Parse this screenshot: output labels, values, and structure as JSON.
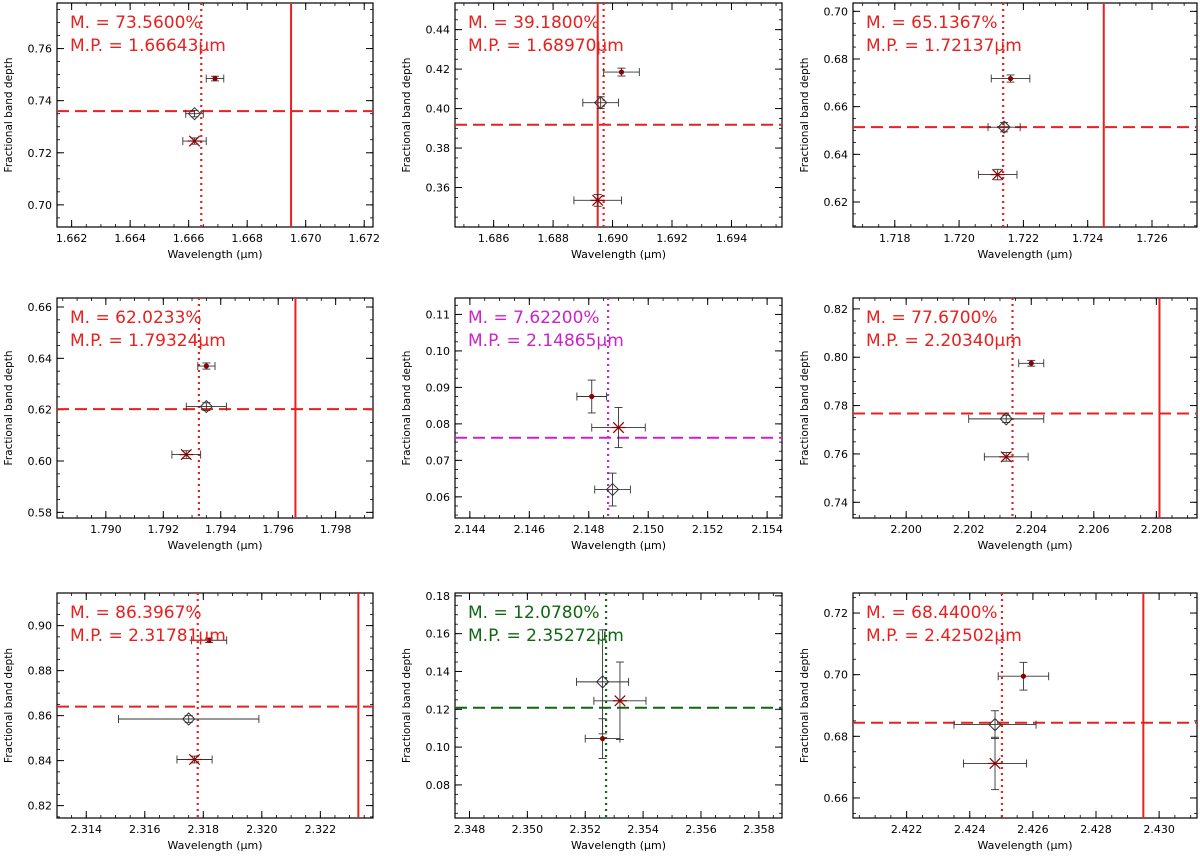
{
  "colors": {
    "red": "#e8201e",
    "magenta": "#cc22cc",
    "green": "#116611",
    "axis": "#000000",
    "errorbar": "#333333",
    "marker": "#8b0000"
  },
  "chart_data": [
    {
      "type": "scatter",
      "xlabel": "Wavelength (μm)",
      "ylabel": "Fractional band depth",
      "color": "red",
      "annotation_m": "M. = 73.5600%",
      "annotation_mp": "M.P. = 1.66643μm",
      "xlim": [
        1.6615,
        1.6723
      ],
      "ylim": [
        0.6915,
        0.7775
      ],
      "xticks": [
        1.662,
        1.664,
        1.666,
        1.668,
        1.67,
        1.672
      ],
      "xtick_labels": [
        "1.662",
        "1.664",
        "1.666",
        "1.668",
        "1.670",
        "1.672"
      ],
      "yticks": [
        0.7,
        0.72,
        0.74,
        0.76
      ],
      "ytick_labels": [
        "0.70",
        "0.72",
        "0.74",
        "0.76"
      ],
      "hline": 0.736,
      "vline_dotted": 1.66643,
      "vline_solid": 1.6695,
      "points": [
        {
          "marker": "dot",
          "x": 1.6669,
          "y": 0.7485,
          "xerr": 0.0003,
          "yerr": 0.0009
        },
        {
          "marker": "diamond",
          "x": 1.6662,
          "y": 0.735,
          "xerr": 0.0003,
          "yerr": 0.0012
        },
        {
          "marker": "asterisk",
          "x": 1.6662,
          "y": 0.7245,
          "xerr": 0.0004,
          "yerr": 0.0012
        }
      ]
    },
    {
      "type": "scatter",
      "xlabel": "Wavelength (μm)",
      "ylabel": "Fractional band depth",
      "color": "red",
      "annotation_m": "M. = 39.1800%",
      "annotation_mp": "M.P. = 1.68970μm",
      "xlim": [
        1.6847,
        1.6957
      ],
      "ylim": [
        0.34,
        0.4535
      ],
      "xticks": [
        1.686,
        1.688,
        1.69,
        1.692,
        1.694
      ],
      "xtick_labels": [
        "1.686",
        "1.688",
        "1.690",
        "1.692",
        "1.694"
      ],
      "yticks": [
        0.36,
        0.38,
        0.4,
        0.42,
        0.44
      ],
      "ytick_labels": [
        "0.36",
        "0.38",
        "0.40",
        "0.42",
        "0.44"
      ],
      "hline": 0.3918,
      "vline_dotted": 1.6897,
      "vline_solid": 1.6895,
      "points": [
        {
          "marker": "dot",
          "x": 1.6903,
          "y": 0.4185,
          "xerr": 0.0006,
          "yerr": 0.002
        },
        {
          "marker": "diamond",
          "x": 1.6896,
          "y": 0.403,
          "xerr": 0.0006,
          "yerr": 0.003
        },
        {
          "marker": "asterisk",
          "x": 1.6895,
          "y": 0.3535,
          "xerr": 0.0008,
          "yerr": 0.003
        }
      ]
    },
    {
      "type": "scatter",
      "xlabel": "Wavelength (μm)",
      "ylabel": "Fractional band depth",
      "color": "red",
      "annotation_m": "M. = 65.1367%",
      "annotation_mp": "M.P. = 1.72137μm",
      "xlim": [
        1.7167,
        1.7274
      ],
      "ylim": [
        0.6095,
        0.7035
      ],
      "xticks": [
        1.718,
        1.72,
        1.722,
        1.724,
        1.726
      ],
      "xtick_labels": [
        "1.718",
        "1.720",
        "1.722",
        "1.724",
        "1.726"
      ],
      "yticks": [
        0.62,
        0.64,
        0.66,
        0.68,
        0.7
      ],
      "ytick_labels": [
        "0.62",
        "0.64",
        "0.66",
        "0.68",
        "0.70"
      ],
      "hline": 0.6514,
      "vline_dotted": 1.72137,
      "vline_solid": 1.7245,
      "points": [
        {
          "marker": "dot",
          "x": 1.7216,
          "y": 0.6718,
          "xerr": 0.0006,
          "yerr": 0.0015
        },
        {
          "marker": "diamond",
          "x": 1.7214,
          "y": 0.6514,
          "xerr": 0.0005,
          "yerr": 0.002
        },
        {
          "marker": "asterisk",
          "x": 1.7212,
          "y": 0.6315,
          "xerr": 0.0006,
          "yerr": 0.0022
        }
      ]
    },
    {
      "type": "scatter",
      "xlabel": "Wavelength (μm)",
      "ylabel": "Fractional band depth",
      "color": "red",
      "annotation_m": "M. = 62.0233%",
      "annotation_mp": "M.P. = 1.79324μm",
      "xlim": [
        1.7883,
        1.7993
      ],
      "ylim": [
        0.5778,
        0.6635
      ],
      "xticks": [
        1.79,
        1.792,
        1.794,
        1.796,
        1.798
      ],
      "xtick_labels": [
        "1.790",
        "1.792",
        "1.794",
        "1.796",
        "1.798"
      ],
      "yticks": [
        0.58,
        0.6,
        0.62,
        0.64,
        0.66
      ],
      "ytick_labels": [
        "0.58",
        "0.60",
        "0.62",
        "0.64",
        "0.66"
      ],
      "hline": 0.6202,
      "vline_dotted": 1.79324,
      "vline_solid": 1.7966,
      "points": [
        {
          "marker": "dot",
          "x": 1.7935,
          "y": 0.637,
          "xerr": 0.0003,
          "yerr": 0.0012
        },
        {
          "marker": "diamond",
          "x": 1.7935,
          "y": 0.6212,
          "xerr": 0.0007,
          "yerr": 0.0015
        },
        {
          "marker": "asterisk",
          "x": 1.7928,
          "y": 0.6025,
          "xerr": 0.0005,
          "yerr": 0.0015
        }
      ]
    },
    {
      "type": "scatter",
      "xlabel": "Wavelength (μm)",
      "ylabel": "Fractional band depth",
      "color": "magenta",
      "annotation_m": "M. = 7.62200%",
      "annotation_mp": "M.P. = 2.14865μm",
      "xlim": [
        2.1435,
        2.1545
      ],
      "ylim": [
        0.0542,
        0.1145
      ],
      "xticks": [
        2.144,
        2.146,
        2.148,
        2.15,
        2.152,
        2.154
      ],
      "xtick_labels": [
        "2.144",
        "2.146",
        "2.148",
        "2.150",
        "2.152",
        "2.154"
      ],
      "yticks": [
        0.06,
        0.07,
        0.08,
        0.09,
        0.1,
        0.11
      ],
      "ytick_labels": [
        "0.06",
        "0.07",
        "0.08",
        "0.09",
        "0.10",
        "0.11"
      ],
      "hline": 0.0762,
      "vline_dotted": 2.14865,
      "vline_solid": null,
      "points": [
        {
          "marker": "dot",
          "x": 2.1481,
          "y": 0.0875,
          "xerr": 0.0005,
          "yerr": 0.0045
        },
        {
          "marker": "asterisk",
          "x": 2.149,
          "y": 0.079,
          "xerr": 0.0009,
          "yerr": 0.0055
        },
        {
          "marker": "diamond",
          "x": 2.1488,
          "y": 0.062,
          "xerr": 0.0006,
          "yerr": 0.0045
        }
      ]
    },
    {
      "type": "scatter",
      "xlabel": "Wavelength (μm)",
      "ylabel": "Fractional band depth",
      "color": "red",
      "annotation_m": "M. = 77.6700%",
      "annotation_mp": "M.P. = 2.20340μm",
      "xlim": [
        2.1983,
        2.2093
      ],
      "ylim": [
        0.7335,
        0.8245
      ],
      "xticks": [
        2.2,
        2.202,
        2.204,
        2.206,
        2.208
      ],
      "xtick_labels": [
        "2.200",
        "2.202",
        "2.204",
        "2.206",
        "2.208"
      ],
      "yticks": [
        0.74,
        0.76,
        0.78,
        0.8,
        0.82
      ],
      "ytick_labels": [
        "0.74",
        "0.76",
        "0.78",
        "0.80",
        "0.82"
      ],
      "hline": 0.7767,
      "vline_dotted": 2.2034,
      "vline_solid": 2.2081,
      "points": [
        {
          "marker": "dot",
          "x": 2.204,
          "y": 0.7975,
          "xerr": 0.0004,
          "yerr": 0.0012
        },
        {
          "marker": "diamond",
          "x": 2.2032,
          "y": 0.7745,
          "xerr": 0.0012,
          "yerr": 0.0015
        },
        {
          "marker": "asterisk",
          "x": 2.2032,
          "y": 0.7588,
          "xerr": 0.0007,
          "yerr": 0.0018
        }
      ]
    },
    {
      "type": "scatter",
      "xlabel": "Wavelength (μm)",
      "ylabel": "Fractional band depth",
      "color": "red",
      "annotation_m": "M. = 86.3967%",
      "annotation_mp": "M.P. = 2.31781μm",
      "xlim": [
        2.313,
        2.3238
      ],
      "ylim": [
        0.8145,
        0.9145
      ],
      "xticks": [
        2.314,
        2.316,
        2.318,
        2.32,
        2.322
      ],
      "xtick_labels": [
        "2.314",
        "2.316",
        "2.318",
        "2.320",
        "2.322"
      ],
      "yticks": [
        0.82,
        0.84,
        0.86,
        0.88,
        0.9
      ],
      "ytick_labels": [
        "0.82",
        "0.84",
        "0.86",
        "0.88",
        "0.90"
      ],
      "hline": 0.864,
      "vline_dotted": 2.31781,
      "vline_solid": 2.3233,
      "points": [
        {
          "marker": "dot",
          "x": 2.3182,
          "y": 0.8935,
          "xerr": 0.0006,
          "yerr": 0.001
        },
        {
          "marker": "diamond",
          "x": 2.3175,
          "y": 0.8585,
          "xerr": 0.0024,
          "yerr": 0.0015
        },
        {
          "marker": "asterisk",
          "x": 2.3177,
          "y": 0.8405,
          "xerr": 0.0006,
          "yerr": 0.0015
        }
      ]
    },
    {
      "type": "scatter",
      "xlabel": "Wavelength (μm)",
      "ylabel": "Fractional band depth",
      "color": "green",
      "annotation_m": "M. = 12.0780%",
      "annotation_mp": "M.P. = 2.35272μm",
      "xlim": [
        2.3475,
        2.3588
      ],
      "ylim": [
        0.0625,
        0.1815
      ],
      "xticks": [
        2.348,
        2.35,
        2.352,
        2.354,
        2.356,
        2.358
      ],
      "xtick_labels": [
        "2.348",
        "2.350",
        "2.352",
        "2.354",
        "2.356",
        "2.358"
      ],
      "yticks": [
        0.08,
        0.1,
        0.12,
        0.14,
        0.16,
        0.18
      ],
      "ytick_labels": [
        "0.08",
        "0.10",
        "0.12",
        "0.14",
        "0.16",
        "0.18"
      ],
      "hline": 0.1208,
      "vline_dotted": 2.35272,
      "vline_solid": null,
      "points": [
        {
          "marker": "dot",
          "x": 2.3526,
          "y": 0.1045,
          "xerr": 0.0006,
          "yerr": 0.0105
        },
        {
          "marker": "diamond",
          "x": 2.3526,
          "y": 0.1345,
          "xerr": 0.0009,
          "yerr": 0.0275
        },
        {
          "marker": "asterisk",
          "x": 2.3532,
          "y": 0.1245,
          "xerr": 0.0009,
          "yerr": 0.0205
        }
      ]
    },
    {
      "type": "scatter",
      "xlabel": "Wavelength (μm)",
      "ylabel": "Fractional band depth",
      "color": "red",
      "annotation_m": "M. = 68.4400%",
      "annotation_mp": "M.P. = 2.42502μm",
      "xlim": [
        2.4203,
        2.4312
      ],
      "ylim": [
        0.6535,
        0.7265
      ],
      "xticks": [
        2.422,
        2.424,
        2.426,
        2.428,
        2.43
      ],
      "xtick_labels": [
        "2.422",
        "2.424",
        "2.426",
        "2.428",
        "2.430"
      ],
      "yticks": [
        0.66,
        0.68,
        0.7,
        0.72
      ],
      "ytick_labels": [
        "0.66",
        "0.68",
        "0.70",
        "0.72"
      ],
      "hline": 0.6844,
      "vline_dotted": 2.42502,
      "vline_solid": 2.4295,
      "points": [
        {
          "marker": "dot",
          "x": 2.4257,
          "y": 0.6995,
          "xerr": 0.0008,
          "yerr": 0.0045
        },
        {
          "marker": "diamond",
          "x": 2.4248,
          "y": 0.6838,
          "xerr": 0.0013,
          "yerr": 0.0045
        },
        {
          "marker": "asterisk",
          "x": 2.4248,
          "y": 0.6712,
          "xerr": 0.001,
          "yerr": 0.0085
        }
      ]
    }
  ]
}
